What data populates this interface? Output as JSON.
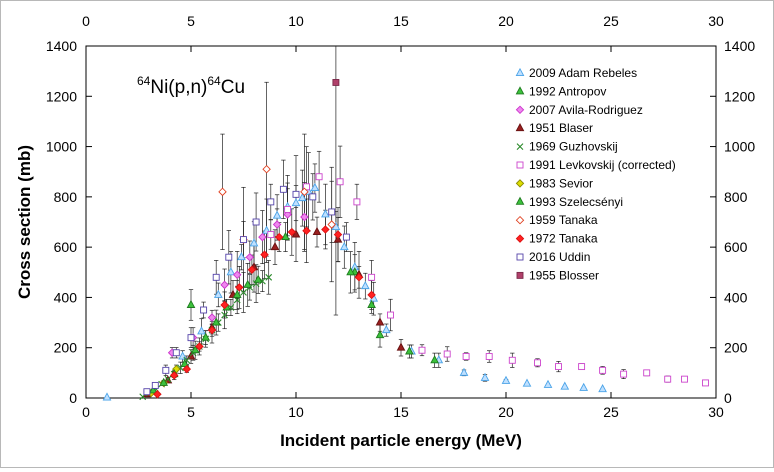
{
  "chart_data": {
    "type": "scatter",
    "title": "⁶⁴Ni(p,n)⁶⁴Cu",
    "title_parts": {
      "sup1": "64",
      "main1": "Ni(p,n)",
      "sup2": "64",
      "main2": "Cu"
    },
    "xlabel": "Incident particle energy (MeV)",
    "ylabel": "Cross section (mb)",
    "xlim": [
      0,
      30
    ],
    "ylim": [
      0,
      1400
    ],
    "xticks": [
      "0",
      "5",
      "10",
      "15",
      "20",
      "25",
      "30"
    ],
    "yticks": [
      "0",
      "200",
      "400",
      "600",
      "800",
      "1000",
      "1200",
      "1400"
    ],
    "grid": false,
    "legend_position": "top-right",
    "series": [
      {
        "name": "2009 Adam Rebeles",
        "marker": "triangle",
        "color": "#4aa3e8",
        "fill": "#bfe0ff",
        "points": [
          [
            1.0,
            2
          ],
          [
            4.6,
            165
          ],
          [
            5.5,
            265
          ],
          [
            6.3,
            410
          ],
          [
            6.9,
            500
          ],
          [
            7.4,
            560
          ],
          [
            8.0,
            615
          ],
          [
            8.6,
            665
          ],
          [
            9.1,
            725
          ],
          [
            9.6,
            760
          ],
          [
            10.0,
            775
          ],
          [
            10.3,
            795
          ],
          [
            10.6,
            820
          ],
          [
            10.9,
            835
          ],
          [
            11.4,
            730
          ],
          [
            11.9,
            680
          ],
          [
            12.3,
            600
          ],
          [
            12.8,
            520
          ],
          [
            13.3,
            445
          ],
          [
            13.7,
            395
          ],
          [
            14.3,
            270
          ],
          [
            15.5,
            185
          ],
          [
            16.8,
            150
          ],
          [
            18.0,
            100
          ],
          [
            19.0,
            80
          ],
          [
            20.0,
            68
          ],
          [
            21.0,
            57
          ],
          [
            22.0,
            52
          ],
          [
            22.8,
            45
          ],
          [
            23.7,
            40
          ],
          [
            24.6,
            35
          ]
        ]
      },
      {
        "name": "1992 Antropov",
        "marker": "triangle",
        "color": "#1f7a1f",
        "fill": "#3cc23c",
        "points": [
          [
            5.0,
            370
          ],
          [
            9.5,
            640
          ],
          [
            12.8,
            500
          ],
          [
            14.0,
            250
          ]
        ]
      },
      {
        "name": "2007 Avila-Rodriguez",
        "marker": "diamond",
        "color": "#cc33cc",
        "fill": "#ee88ee",
        "points": [
          [
            4.1,
            180
          ],
          [
            5.1,
            240
          ],
          [
            6.0,
            320
          ],
          [
            6.6,
            450
          ],
          [
            7.2,
            490
          ],
          [
            7.8,
            560
          ],
          [
            8.4,
            640
          ],
          [
            9.1,
            690
          ],
          [
            9.6,
            730
          ],
          [
            10.4,
            720
          ]
        ]
      },
      {
        "name": "1951 Blaser",
        "marker": "triangle",
        "color": "#661111",
        "fill": "#991f1f",
        "points": [
          [
            2.9,
            15
          ],
          [
            3.9,
            70
          ],
          [
            5.0,
            165
          ],
          [
            6.0,
            280
          ],
          [
            7.0,
            410
          ],
          [
            8.0,
            520
          ],
          [
            9.0,
            600
          ],
          [
            10.0,
            650
          ],
          [
            11.0,
            660
          ],
          [
            12.0,
            630
          ],
          [
            13.0,
            490
          ],
          [
            14.0,
            300
          ],
          [
            15.0,
            200
          ]
        ]
      },
      {
        "name": "1969 Guzhovskij",
        "marker": "cross",
        "color": "#2a8a2a",
        "fill": "none",
        "points": [
          [
            2.7,
            5
          ],
          [
            3.0,
            20
          ],
          [
            3.3,
            38
          ],
          [
            3.6,
            55
          ],
          [
            3.9,
            75
          ],
          [
            4.2,
            95
          ],
          [
            4.5,
            120
          ],
          [
            4.8,
            150
          ],
          [
            5.1,
            180
          ],
          [
            5.4,
            205
          ],
          [
            5.7,
            235
          ],
          [
            6.0,
            270
          ],
          [
            6.3,
            300
          ],
          [
            6.6,
            330
          ],
          [
            6.9,
            360
          ],
          [
            7.2,
            390
          ],
          [
            7.5,
            420
          ],
          [
            7.8,
            440
          ],
          [
            8.1,
            455
          ],
          [
            8.4,
            465
          ],
          [
            8.7,
            480
          ]
        ]
      },
      {
        "name": "1991 Levkovskij (corrected)",
        "marker": "square",
        "color": "#cc44cc",
        "fill": "#ffffff",
        "points": [
          [
            8.8,
            650
          ],
          [
            9.6,
            750
          ],
          [
            10.5,
            840
          ],
          [
            11.1,
            880
          ],
          [
            12.1,
            860
          ],
          [
            12.9,
            780
          ],
          [
            13.6,
            480
          ],
          [
            14.5,
            330
          ],
          [
            16.0,
            190
          ],
          [
            17.2,
            175
          ],
          [
            18.1,
            165
          ],
          [
            19.2,
            165
          ],
          [
            20.3,
            150
          ],
          [
            21.5,
            140
          ],
          [
            22.5,
            125
          ],
          [
            23.6,
            125
          ],
          [
            24.6,
            110
          ],
          [
            25.6,
            95
          ],
          [
            26.7,
            100
          ],
          [
            27.7,
            75
          ],
          [
            28.5,
            75
          ],
          [
            29.5,
            60
          ]
        ]
      },
      {
        "name": "1983 Sevior",
        "marker": "diamond",
        "color": "#8a8a00",
        "fill": "#dddd00",
        "points": [
          [
            3.1,
            20
          ],
          [
            3.7,
            60
          ],
          [
            4.3,
            115
          ]
        ]
      },
      {
        "name": "1993 Szelecsényi",
        "marker": "triangle",
        "color": "#1f7a1f",
        "fill": "#3cc23c",
        "points": [
          [
            3.2,
            30
          ],
          [
            3.7,
            60
          ],
          [
            4.2,
            95
          ],
          [
            4.7,
            135
          ],
          [
            5.2,
            190
          ],
          [
            5.7,
            240
          ],
          [
            6.2,
            300
          ],
          [
            6.7,
            360
          ],
          [
            7.2,
            410
          ],
          [
            7.7,
            450
          ],
          [
            8.2,
            470
          ],
          [
            12.6,
            500
          ],
          [
            13.6,
            370
          ],
          [
            15.4,
            185
          ],
          [
            16.6,
            150
          ]
        ]
      },
      {
        "name": "1959 Tanaka",
        "marker": "diamond-open",
        "color": "#e04020",
        "fill": "#ffffff",
        "points": [
          [
            6.5,
            820
          ],
          [
            7.5,
            630
          ],
          [
            8.6,
            910
          ],
          [
            10.4,
            820
          ],
          [
            11.7,
            690
          ]
        ]
      },
      {
        "name": "1972 Tanaka",
        "marker": "diamond",
        "color": "#dd1111",
        "fill": "#ff2222",
        "points": [
          [
            3.4,
            15
          ],
          [
            4.2,
            90
          ],
          [
            4.8,
            115
          ],
          [
            5.4,
            205
          ],
          [
            6.0,
            270
          ],
          [
            6.6,
            370
          ],
          [
            7.3,
            440
          ],
          [
            7.9,
            510
          ],
          [
            8.5,
            570
          ],
          [
            9.2,
            640
          ],
          [
            9.8,
            660
          ],
          [
            10.5,
            665
          ],
          [
            11.4,
            670
          ],
          [
            12.0,
            650
          ],
          [
            13.0,
            480
          ],
          [
            13.6,
            410
          ]
        ]
      },
      {
        "name": "2016 Uddin",
        "marker": "square",
        "color": "#5544aa",
        "fill": "#ffffff",
        "points": [
          [
            2.9,
            25
          ],
          [
            3.3,
            50
          ],
          [
            3.8,
            110
          ],
          [
            4.3,
            180
          ],
          [
            5.0,
            240
          ],
          [
            5.6,
            350
          ],
          [
            6.2,
            480
          ],
          [
            6.8,
            560
          ],
          [
            7.5,
            630
          ],
          [
            8.1,
            700
          ],
          [
            8.8,
            780
          ],
          [
            9.4,
            830
          ],
          [
            10.0,
            810
          ],
          [
            10.8,
            800
          ],
          [
            11.7,
            740
          ],
          [
            12.4,
            640
          ]
        ]
      },
      {
        "name": "1955 Blosser",
        "marker": "square",
        "color": "#7a2a4a",
        "fill": "#b0406a",
        "points": [
          [
            11.9,
            1255
          ]
        ]
      }
    ]
  }
}
